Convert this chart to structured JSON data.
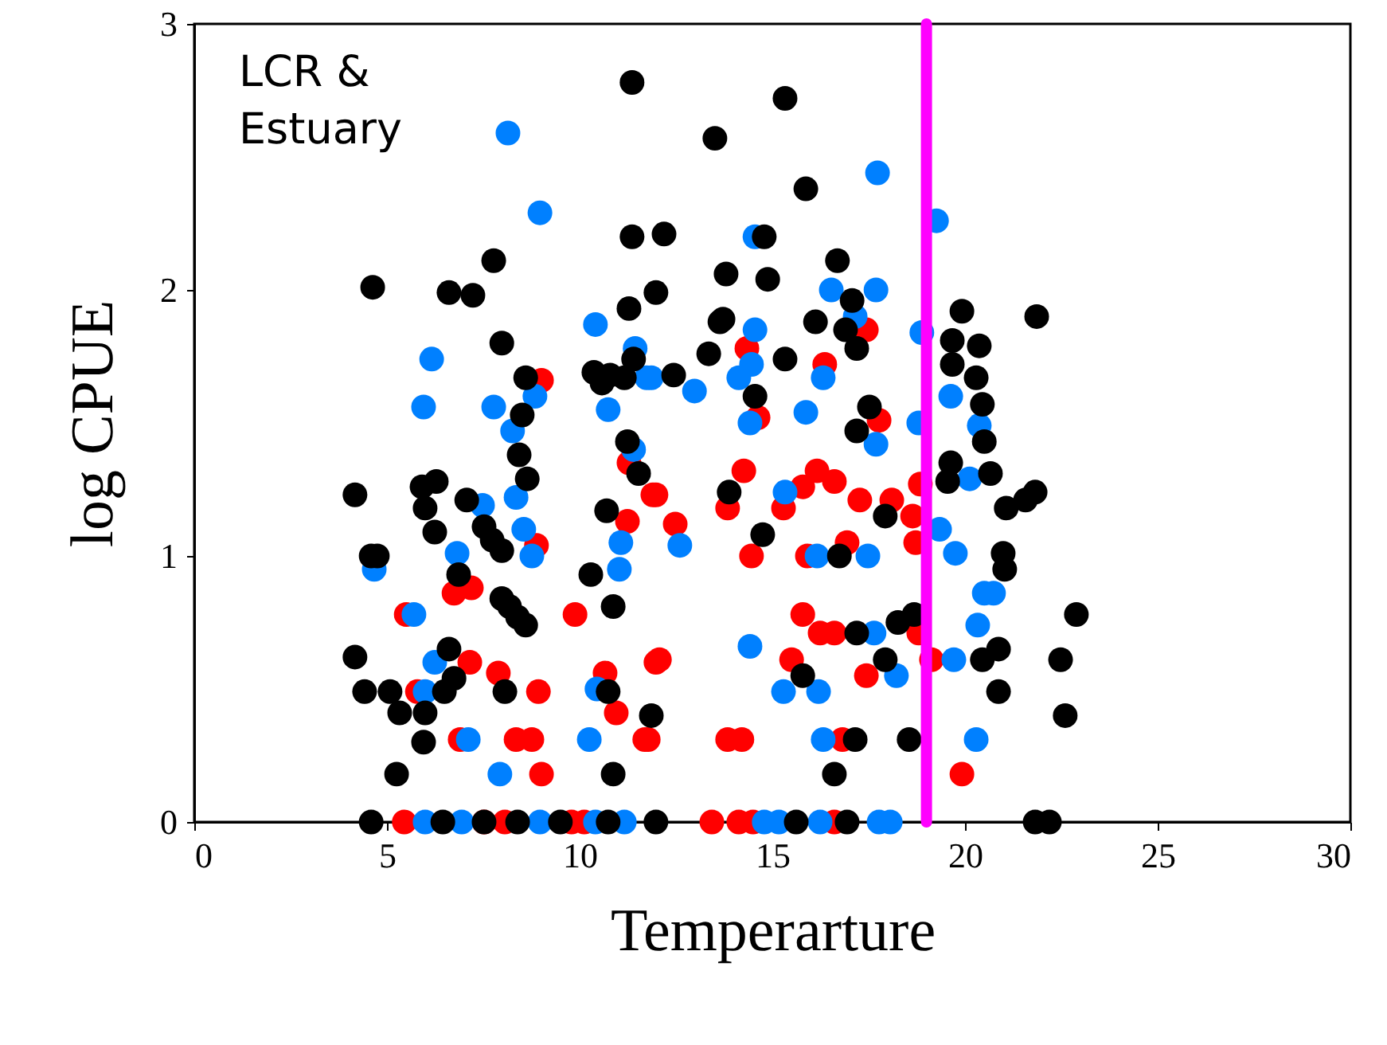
{
  "chart_data": {
    "type": "scatter",
    "xlabel": "Temperarture",
    "ylabel": "log CPUE",
    "xlim": [
      0,
      30
    ],
    "ylim": [
      0,
      3
    ],
    "xticks": [
      0,
      5,
      10,
      15,
      20,
      25,
      30
    ],
    "yticks": [
      {
        "value": 0,
        "label": "0"
      },
      {
        "value": 1,
        "label": "1"
      },
      {
        "value": 2,
        "label": "2"
      },
      {
        "value": 3,
        "label": "3"
      }
    ],
    "grid": false,
    "marker": "circle",
    "annotations": [
      "LCR &\nEstuary"
    ],
    "ref_lines": [
      {
        "axis": "x",
        "value": 19,
        "color": "#ff00ff"
      }
    ],
    "series": [
      {
        "color": "#ff0000",
        "x": [
          9.01,
          8.88,
          5.5,
          6.74,
          7.19,
          9.88,
          7.15,
          7.89,
          8.93,
          5.79,
          10.95,
          10.66,
          11.98,
          11.69,
          6.9,
          8.35,
          8.76,
          9.01,
          11.24,
          11.28,
          11.9,
          5.45,
          7.52,
          8.06,
          9.79,
          10.12,
          14.34,
          17.44,
          16.36,
          14.63,
          17.77,
          14.26,
          11.98,
          13.84,
          12.48,
          14.46,
          15.79,
          16.16,
          16.61,
          15.29,
          17.27,
          18.1,
          18.84,
          18.64,
          18.72,
          16.94,
          15.91,
          15.79,
          16.24,
          16.61,
          18.8,
          19.13,
          15.5,
          17.44,
          12.07,
          11.78,
          13.84,
          14.21,
          16.82,
          19.92,
          13.43,
          14.13,
          14.5,
          16.61
        ],
        "values": [
          1.66,
          1.04,
          0.78,
          0.86,
          0.88,
          0.78,
          0.6,
          0.56,
          0.49,
          0.49,
          0.41,
          0.56,
          0.6,
          0.31,
          0.31,
          0.31,
          0.31,
          0.18,
          1.13,
          1.35,
          1.23,
          0,
          0,
          0,
          0,
          0,
          1.78,
          1.85,
          1.72,
          1.52,
          1.51,
          1.32,
          1.23,
          1.18,
          1.12,
          1.0,
          1.26,
          1.32,
          1.28,
          1.18,
          1.21,
          1.21,
          1.27,
          1.15,
          1.05,
          1.05,
          1.0,
          0.78,
          0.71,
          0.71,
          0.71,
          0.61,
          0.61,
          0.55,
          0.61,
          0.31,
          0.31,
          0.31,
          0.31,
          0.18,
          0,
          0,
          0,
          0
        ]
      },
      {
        "color": "#0080ff",
        "x": [
          8.14,
          8.97,
          6.16,
          5.95,
          7.77,
          10.41,
          11.44,
          11.74,
          8.84,
          10.74,
          8.26,
          11.4,
          7.48,
          8.35,
          8.55,
          8.76,
          6.82,
          11.07,
          11.03,
          4.67,
          5.7,
          6.24,
          5.99,
          7.11,
          10.25,
          7.93,
          10.45,
          5.99,
          6.94,
          8.97,
          10.41,
          11.16,
          17.73,
          19.26,
          14.55,
          16.53,
          17.69,
          17.15,
          18.88,
          14.55,
          14.46,
          14.13,
          11.86,
          12.98,
          16.32,
          14.42,
          15.87,
          18.8,
          17.69,
          20.37,
          19.63,
          20.12,
          15.33,
          19.34,
          19.75,
          12.6,
          16.16,
          17.48,
          20.5,
          20.74,
          20.33,
          17.64,
          14.42,
          19.71,
          18.22,
          15.29,
          16.2,
          16.32,
          20.29,
          14.79,
          15.17,
          16.24,
          17.77,
          18.06
        ],
        "values": [
          2.59,
          2.29,
          1.74,
          1.56,
          1.56,
          1.87,
          1.78,
          1.67,
          1.6,
          1.55,
          1.47,
          1.4,
          1.19,
          1.22,
          1.1,
          1.0,
          1.01,
          1.05,
          0.95,
          0.95,
          0.78,
          0.6,
          0.49,
          0.31,
          0.31,
          0.18,
          0.5,
          0,
          0,
          0,
          0,
          0,
          2.44,
          2.26,
          2.2,
          2.0,
          2.0,
          1.9,
          1.84,
          1.85,
          1.72,
          1.67,
          1.67,
          1.62,
          1.67,
          1.5,
          1.54,
          1.5,
          1.42,
          1.49,
          1.6,
          1.29,
          1.24,
          1.1,
          1.01,
          1.04,
          1.0,
          1.0,
          0.86,
          0.86,
          0.74,
          0.71,
          0.66,
          0.61,
          0.55,
          0.49,
          0.49,
          0.31,
          0.31,
          0,
          0,
          0,
          0,
          0
        ]
      },
      {
        "color": "#000000",
        "x": [
          4.17,
          4.17,
          4.42,
          4.59,
          4.75,
          4.63,
          4.59,
          5.08,
          5.33,
          5.25,
          5.91,
          5.99,
          6.28,
          6.24,
          5.95,
          5.99,
          6.49,
          6.61,
          6.74,
          6.61,
          7.23,
          6.86,
          7.07,
          7.52,
          7.73,
          7.98,
          7.98,
          8.18,
          8.39,
          8.6,
          7.77,
          7.98,
          8.43,
          8.51,
          8.6,
          8.64,
          8.06,
          6.45,
          7.52,
          8.39,
          9.5,
          10.37,
          10.79,
          11.16,
          10.58,
          10.29,
          10.7,
          10.87,
          10.74,
          10.87,
          11.36,
          11.28,
          11.36,
          12.19,
          11.98,
          11.4,
          11.24,
          11.53,
          11.86,
          11.98,
          10.74,
          12.44,
          13.51,
          13.35,
          13.64,
          13.8,
          13.88,
          15.33,
          15.87,
          14.79,
          14.88,
          16.69,
          17.07,
          16.9,
          17.19,
          13.72,
          16.12,
          15.33,
          14.55,
          17.52,
          17.19,
          19.92,
          19.67,
          20.37,
          19.67,
          20.29,
          20.45,
          20.5,
          21.86,
          19.63,
          19.55,
          20.66,
          21.07,
          21.57,
          21.82,
          17.93,
          14.75,
          20.99,
          21.03,
          16.74,
          18.68,
          18.26,
          17.19,
          17.93,
          20.45,
          20.87,
          22.48,
          22.89,
          15.79,
          20.87,
          22.6,
          17.15,
          18.55,
          16.61,
          15.62,
          16.94,
          21.82,
          22.19
        ],
        "values": [
          1.23,
          0.62,
          0.49,
          1.0,
          1.0,
          2.01,
          0,
          0.49,
          0.41,
          0.18,
          1.26,
          1.18,
          1.28,
          1.09,
          0.3,
          0.41,
          0.49,
          0.65,
          0.54,
          1.99,
          1.98,
          0.93,
          1.21,
          1.11,
          1.06,
          1.02,
          0.84,
          0.81,
          0.77,
          0.74,
          2.11,
          1.8,
          1.38,
          1.53,
          1.67,
          1.29,
          0.49,
          0,
          0,
          0,
          0,
          1.69,
          1.68,
          1.67,
          1.65,
          0.93,
          1.17,
          0.81,
          0.49,
          0.18,
          2.78,
          1.93,
          2.2,
          2.21,
          1.99,
          1.74,
          1.43,
          1.31,
          0.4,
          0,
          0,
          1.68,
          2.57,
          1.76,
          1.88,
          2.06,
          1.24,
          2.72,
          2.38,
          2.2,
          2.04,
          2.11,
          1.96,
          1.85,
          1.78,
          1.89,
          1.88,
          1.74,
          1.6,
          1.56,
          1.47,
          1.92,
          1.81,
          1.79,
          1.72,
          1.67,
          1.57,
          1.43,
          1.9,
          1.35,
          1.28,
          1.31,
          1.18,
          1.21,
          1.24,
          1.15,
          1.08,
          1.01,
          0.95,
          1.0,
          0.78,
          0.75,
          0.71,
          0.61,
          0.61,
          0.65,
          0.61,
          0.78,
          0.55,
          0.49,
          0.4,
          0.31,
          0.31,
          0.18,
          0,
          0,
          0,
          0
        ]
      }
    ]
  }
}
